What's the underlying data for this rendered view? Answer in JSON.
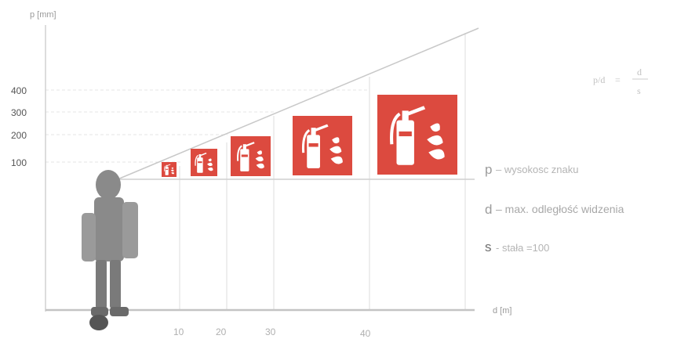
{
  "axes": {
    "y_label": "p [mm]",
    "x_label": "d [m]",
    "y_ticks": [
      "100",
      "200",
      "300",
      "400"
    ],
    "x_ticks": [
      "10",
      "20",
      "30",
      "40"
    ]
  },
  "formula": {
    "lhs": "p/d",
    "rhs_num": "d",
    "rhs_den": "s"
  },
  "legend": {
    "p_symbol": "p",
    "p_text": "– wysokosc znaku",
    "d_symbol": "d",
    "d_text": "– max. odległość widzenia",
    "s_symbol": "s",
    "s_text": "- stała =100"
  },
  "colors": {
    "sign_red": "#dc4a3f",
    "sign_white": "#ffffff",
    "person": "#8a8a8a",
    "line": "#c8c8c8",
    "grid": "#e2e2e2"
  },
  "signs": [
    {
      "name": "fire-extinguisher-sign-smallest",
      "icon": "fire-extinguisher-icon"
    },
    {
      "name": "fire-extinguisher-sign-small",
      "icon": "fire-extinguisher-icon"
    },
    {
      "name": "fire-extinguisher-sign-medium",
      "icon": "fire-extinguisher-icon"
    },
    {
      "name": "fire-extinguisher-sign-large",
      "icon": "fire-extinguisher-icon"
    },
    {
      "name": "fire-extinguisher-sign-largest",
      "icon": "fire-extinguisher-icon"
    }
  ]
}
